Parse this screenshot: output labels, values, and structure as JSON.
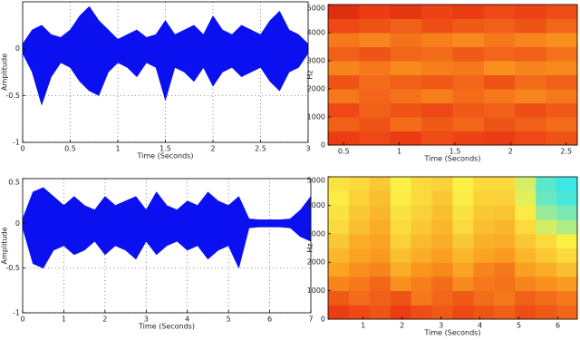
{
  "chart_data": [
    {
      "type": "area",
      "xlabel": "Time (Seconds)",
      "ylabel": "Amplitude",
      "color": "#0a10f0",
      "grid": true,
      "xlim": [
        0,
        3
      ],
      "ylim": [
        -1,
        0.5
      ],
      "xticks": [
        0,
        0.5,
        1,
        1.5,
        2,
        2.5,
        3
      ],
      "yticks": [
        -1,
        -0.5,
        0
      ],
      "x": [
        0,
        0.1,
        0.2,
        0.3,
        0.4,
        0.5,
        0.6,
        0.7,
        0.8,
        0.9,
        1,
        1.1,
        1.2,
        1.3,
        1.4,
        1.5,
        1.6,
        1.7,
        1.8,
        1.9,
        2,
        2.1,
        2.2,
        2.3,
        2.4,
        2.5,
        2.6,
        2.7,
        2.8,
        2.9,
        3
      ],
      "upper": [
        0.05,
        0.2,
        0.25,
        0.15,
        0.12,
        0.2,
        0.35,
        0.45,
        0.3,
        0.2,
        0.1,
        0.15,
        0.2,
        0.12,
        0.15,
        0.3,
        0.15,
        0.2,
        0.25,
        0.15,
        0.35,
        0.2,
        0.15,
        0.25,
        0.2,
        0.15,
        0.3,
        0.4,
        0.2,
        0.15,
        0.05
      ],
      "lower": [
        -0.05,
        -0.25,
        -0.6,
        -0.3,
        -0.15,
        -0.2,
        -0.35,
        -0.45,
        -0.5,
        -0.25,
        -0.15,
        -0.2,
        -0.3,
        -0.15,
        -0.2,
        -0.55,
        -0.2,
        -0.25,
        -0.35,
        -0.2,
        -0.4,
        -0.25,
        -0.2,
        -0.3,
        -0.25,
        -0.2,
        -0.35,
        -0.45,
        -0.25,
        -0.2,
        -0.05
      ]
    },
    {
      "type": "heatmap",
      "xlabel": "Time (Seconds)",
      "ylabel": "Hz",
      "clim": [
        0,
        1
      ],
      "xlim": [
        0.36,
        2.6
      ],
      "ylim": [
        0,
        5000
      ],
      "xticks": [
        0.5,
        1,
        1.5,
        2,
        2.5
      ],
      "yticks": [
        0,
        1000,
        2000,
        3000,
        4000,
        5000
      ],
      "z": [
        [
          0.9,
          0.88,
          0.9,
          0.87,
          0.89,
          0.9,
          0.88,
          0.86
        ],
        [
          0.84,
          0.86,
          0.82,
          0.85,
          0.83,
          0.86,
          0.84,
          0.82
        ],
        [
          0.88,
          0.84,
          0.86,
          0.88,
          0.85,
          0.84,
          0.87,
          0.85
        ],
        [
          0.8,
          0.83,
          0.81,
          0.79,
          0.82,
          0.8,
          0.78,
          0.8
        ],
        [
          0.86,
          0.82,
          0.84,
          0.85,
          0.83,
          0.86,
          0.82,
          0.84
        ],
        [
          0.78,
          0.8,
          0.77,
          0.79,
          0.8,
          0.76,
          0.78,
          0.77
        ],
        [
          0.84,
          0.86,
          0.83,
          0.82,
          0.85,
          0.83,
          0.84,
          0.81
        ],
        [
          0.8,
          0.78,
          0.81,
          0.79,
          0.77,
          0.8,
          0.78,
          0.76
        ],
        [
          0.88,
          0.86,
          0.84,
          0.87,
          0.85,
          0.84,
          0.86,
          0.83
        ],
        [
          0.92,
          0.9,
          0.91,
          0.89,
          0.9,
          0.88,
          0.89,
          0.87
        ]
      ]
    },
    {
      "type": "area",
      "xlabel": "Time (Seconds)",
      "ylabel": "Amplitude",
      "color": "#0a10f0",
      "grid": true,
      "xlim": [
        0,
        7
      ],
      "ylim": [
        -1,
        0.5
      ],
      "xticks": [
        0,
        1,
        2,
        3,
        4,
        5,
        6,
        7
      ],
      "yticks": [
        -1,
        -0.5,
        0,
        0.5
      ],
      "x": [
        0,
        0.25,
        0.5,
        0.75,
        1,
        1.25,
        1.5,
        1.75,
        2,
        2.25,
        2.5,
        2.75,
        3,
        3.25,
        3.5,
        3.75,
        4,
        4.25,
        4.5,
        4.75,
        5,
        5.25,
        5.5,
        5.75,
        6,
        6.25,
        6.5,
        6.75,
        7
      ],
      "upper": [
        0.05,
        0.35,
        0.4,
        0.3,
        0.2,
        0.3,
        0.2,
        0.15,
        0.3,
        0.2,
        0.25,
        0.3,
        0.15,
        0.35,
        0.2,
        0.15,
        0.25,
        0.2,
        0.35,
        0.25,
        0.2,
        0.3,
        0.05,
        0.04,
        0.04,
        0.04,
        0.05,
        0.15,
        0.3
      ],
      "lower": [
        -0.05,
        -0.45,
        -0.5,
        -0.3,
        -0.25,
        -0.35,
        -0.3,
        -0.2,
        -0.35,
        -0.25,
        -0.3,
        -0.4,
        -0.2,
        -0.35,
        -0.25,
        -0.2,
        -0.3,
        -0.25,
        -0.4,
        -0.3,
        -0.25,
        -0.5,
        -0.05,
        -0.04,
        -0.04,
        -0.04,
        -0.05,
        -0.15,
        -0.2
      ]
    },
    {
      "type": "heatmap",
      "xlabel": "Time (Seconds)",
      "ylabel": "Hz",
      "clim": [
        0,
        1
      ],
      "xlim": [
        0.1,
        6.5
      ],
      "ylim": [
        0,
        5000
      ],
      "xticks": [
        1,
        2,
        3,
        4,
        5,
        6
      ],
      "yticks": [
        0,
        1000,
        2000,
        3000,
        4000,
        5000
      ],
      "z": [
        [
          0.9,
          0.88,
          0.86,
          0.9,
          0.87,
          0.85,
          0.88,
          0.86,
          0.84,
          0.87,
          0.85,
          0.83
        ],
        [
          0.85,
          0.82,
          0.84,
          0.86,
          0.8,
          0.83,
          0.85,
          0.82,
          0.8,
          0.84,
          0.82,
          0.8
        ],
        [
          0.78,
          0.8,
          0.83,
          0.76,
          0.79,
          0.82,
          0.77,
          0.8,
          0.81,
          0.78,
          0.76,
          0.74
        ],
        [
          0.72,
          0.76,
          0.78,
          0.7,
          0.75,
          0.77,
          0.72,
          0.78,
          0.8,
          0.73,
          0.7,
          0.66
        ],
        [
          0.68,
          0.72,
          0.74,
          0.66,
          0.7,
          0.73,
          0.68,
          0.72,
          0.74,
          0.68,
          0.64,
          0.6
        ],
        [
          0.64,
          0.7,
          0.72,
          0.62,
          0.67,
          0.7,
          0.64,
          0.69,
          0.7,
          0.64,
          0.6,
          0.55
        ],
        [
          0.6,
          0.66,
          0.7,
          0.6,
          0.64,
          0.68,
          0.6,
          0.66,
          0.68,
          0.6,
          0.5,
          0.45
        ],
        [
          0.58,
          0.64,
          0.68,
          0.58,
          0.62,
          0.66,
          0.58,
          0.64,
          0.65,
          0.56,
          0.42,
          0.38
        ],
        [
          0.56,
          0.62,
          0.66,
          0.56,
          0.6,
          0.64,
          0.56,
          0.62,
          0.62,
          0.52,
          0.36,
          0.32
        ],
        [
          0.58,
          0.6,
          0.64,
          0.55,
          0.6,
          0.62,
          0.55,
          0.6,
          0.6,
          0.5,
          0.34,
          0.3
        ]
      ]
    }
  ]
}
